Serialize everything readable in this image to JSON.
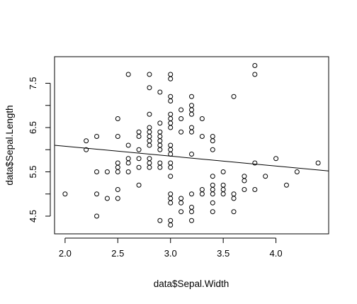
{
  "chart_data": {
    "type": "scatter",
    "xlabel": "data$Sepal.Width",
    "ylabel": "data$Sepal.Length",
    "xlim": [
      1.9,
      4.5
    ],
    "ylim": [
      4.1,
      8.1
    ],
    "x_ticks": [
      "2.0",
      "2.5",
      "3.0",
      "3.5",
      "4.0"
    ],
    "y_ticks": [
      "4.5",
      "5.5",
      "6.5",
      "7.5"
    ],
    "y_minor_ticks": [
      5.0,
      6.0,
      7.0
    ],
    "marker": "open-circle",
    "regression_line": {
      "x": [
        1.9,
        4.5
      ],
      "y": [
        6.1,
        5.52
      ]
    },
    "points": [
      {
        "x": 2.0,
        "y": 5.0
      },
      {
        "x": 2.2,
        "y": 6.0
      },
      {
        "x": 2.2,
        "y": 6.2
      },
      {
        "x": 2.3,
        "y": 4.5
      },
      {
        "x": 2.3,
        "y": 5.0
      },
      {
        "x": 2.3,
        "y": 5.5
      },
      {
        "x": 2.3,
        "y": 6.3
      },
      {
        "x": 2.4,
        "y": 4.9
      },
      {
        "x": 2.4,
        "y": 5.5
      },
      {
        "x": 2.5,
        "y": 4.9
      },
      {
        "x": 2.5,
        "y": 5.1
      },
      {
        "x": 2.5,
        "y": 5.5
      },
      {
        "x": 2.5,
        "y": 5.6
      },
      {
        "x": 2.5,
        "y": 5.7
      },
      {
        "x": 2.5,
        "y": 6.3
      },
      {
        "x": 2.5,
        "y": 6.7
      },
      {
        "x": 2.6,
        "y": 5.5
      },
      {
        "x": 2.6,
        "y": 5.7
      },
      {
        "x": 2.6,
        "y": 5.8
      },
      {
        "x": 2.6,
        "y": 6.1
      },
      {
        "x": 2.6,
        "y": 7.7
      },
      {
        "x": 2.7,
        "y": 5.2
      },
      {
        "x": 2.7,
        "y": 5.6
      },
      {
        "x": 2.7,
        "y": 5.8
      },
      {
        "x": 2.7,
        "y": 6.0
      },
      {
        "x": 2.7,
        "y": 6.3
      },
      {
        "x": 2.7,
        "y": 6.4
      },
      {
        "x": 2.8,
        "y": 5.6
      },
      {
        "x": 2.8,
        "y": 5.7
      },
      {
        "x": 2.8,
        "y": 5.8
      },
      {
        "x": 2.8,
        "y": 6.1
      },
      {
        "x": 2.8,
        "y": 6.2
      },
      {
        "x": 2.8,
        "y": 6.3
      },
      {
        "x": 2.8,
        "y": 6.4
      },
      {
        "x": 2.8,
        "y": 6.5
      },
      {
        "x": 2.8,
        "y": 6.8
      },
      {
        "x": 2.8,
        "y": 7.4
      },
      {
        "x": 2.8,
        "y": 7.7
      },
      {
        "x": 2.9,
        "y": 4.4
      },
      {
        "x": 2.9,
        "y": 5.6
      },
      {
        "x": 2.9,
        "y": 5.7
      },
      {
        "x": 2.9,
        "y": 6.0
      },
      {
        "x": 2.9,
        "y": 6.1
      },
      {
        "x": 2.9,
        "y": 6.2
      },
      {
        "x": 2.9,
        "y": 6.3
      },
      {
        "x": 2.9,
        "y": 6.4
      },
      {
        "x": 2.9,
        "y": 6.6
      },
      {
        "x": 2.9,
        "y": 7.3
      },
      {
        "x": 3.0,
        "y": 4.3
      },
      {
        "x": 3.0,
        "y": 4.4
      },
      {
        "x": 3.0,
        "y": 4.8
      },
      {
        "x": 3.0,
        "y": 4.9
      },
      {
        "x": 3.0,
        "y": 5.0
      },
      {
        "x": 3.0,
        "y": 5.4
      },
      {
        "x": 3.0,
        "y": 5.6
      },
      {
        "x": 3.0,
        "y": 5.7
      },
      {
        "x": 3.0,
        "y": 5.9
      },
      {
        "x": 3.0,
        "y": 6.0
      },
      {
        "x": 3.0,
        "y": 6.1
      },
      {
        "x": 3.0,
        "y": 6.5
      },
      {
        "x": 3.0,
        "y": 6.6
      },
      {
        "x": 3.0,
        "y": 6.7
      },
      {
        "x": 3.0,
        "y": 6.8
      },
      {
        "x": 3.0,
        "y": 7.1
      },
      {
        "x": 3.0,
        "y": 7.2
      },
      {
        "x": 3.0,
        "y": 7.6
      },
      {
        "x": 3.0,
        "y": 7.7
      },
      {
        "x": 3.1,
        "y": 4.6
      },
      {
        "x": 3.1,
        "y": 4.8
      },
      {
        "x": 3.1,
        "y": 4.9
      },
      {
        "x": 3.1,
        "y": 6.4
      },
      {
        "x": 3.1,
        "y": 6.7
      },
      {
        "x": 3.1,
        "y": 6.9
      },
      {
        "x": 3.2,
        "y": 4.4
      },
      {
        "x": 3.2,
        "y": 4.6
      },
      {
        "x": 3.2,
        "y": 4.7
      },
      {
        "x": 3.2,
        "y": 5.0
      },
      {
        "x": 3.2,
        "y": 5.9
      },
      {
        "x": 3.2,
        "y": 6.4
      },
      {
        "x": 3.2,
        "y": 6.5
      },
      {
        "x": 3.2,
        "y": 6.8
      },
      {
        "x": 3.2,
        "y": 6.9
      },
      {
        "x": 3.2,
        "y": 7.0
      },
      {
        "x": 3.2,
        "y": 7.2
      },
      {
        "x": 3.3,
        "y": 5.0
      },
      {
        "x": 3.3,
        "y": 5.1
      },
      {
        "x": 3.3,
        "y": 6.3
      },
      {
        "x": 3.3,
        "y": 6.7
      },
      {
        "x": 3.4,
        "y": 4.6
      },
      {
        "x": 3.4,
        "y": 4.8
      },
      {
        "x": 3.4,
        "y": 5.0
      },
      {
        "x": 3.4,
        "y": 5.1
      },
      {
        "x": 3.4,
        "y": 5.2
      },
      {
        "x": 3.4,
        "y": 5.4
      },
      {
        "x": 3.4,
        "y": 6.0
      },
      {
        "x": 3.4,
        "y": 6.2
      },
      {
        "x": 3.4,
        "y": 6.3
      },
      {
        "x": 3.5,
        "y": 5.0
      },
      {
        "x": 3.5,
        "y": 5.1
      },
      {
        "x": 3.5,
        "y": 5.2
      },
      {
        "x": 3.5,
        "y": 5.5
      },
      {
        "x": 3.6,
        "y": 4.6
      },
      {
        "x": 3.6,
        "y": 4.9
      },
      {
        "x": 3.6,
        "y": 5.0
      },
      {
        "x": 3.6,
        "y": 7.2
      },
      {
        "x": 3.7,
        "y": 5.1
      },
      {
        "x": 3.7,
        "y": 5.3
      },
      {
        "x": 3.7,
        "y": 5.4
      },
      {
        "x": 3.8,
        "y": 5.1
      },
      {
        "x": 3.8,
        "y": 5.7
      },
      {
        "x": 3.8,
        "y": 7.7
      },
      {
        "x": 3.8,
        "y": 7.9
      },
      {
        "x": 3.9,
        "y": 5.4
      },
      {
        "x": 4.0,
        "y": 5.8
      },
      {
        "x": 4.1,
        "y": 5.2
      },
      {
        "x": 4.2,
        "y": 5.5
      },
      {
        "x": 4.4,
        "y": 5.7
      }
    ]
  }
}
